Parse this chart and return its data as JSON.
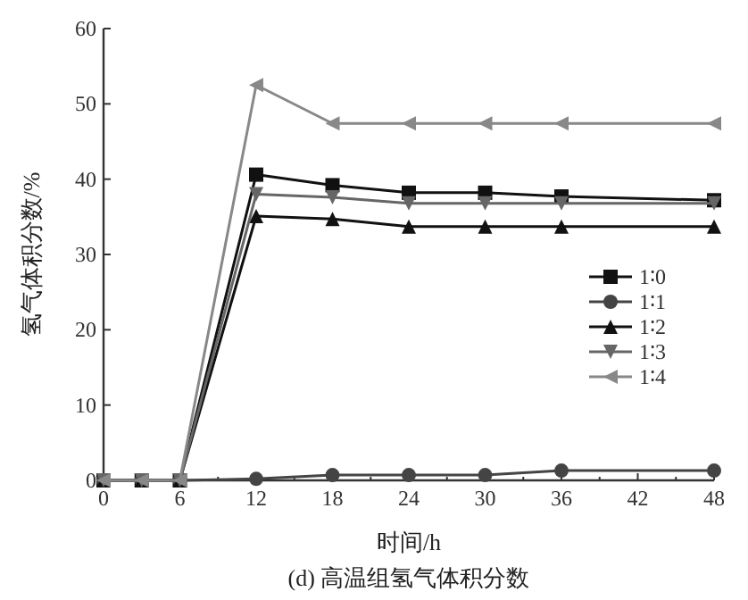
{
  "chart_data": {
    "type": "line",
    "title": "(d) 高温组氢气体积分数",
    "xlabel": "时间/h",
    "ylabel": "氢气体积分数/%",
    "x": [
      0,
      3,
      6,
      12,
      18,
      24,
      30,
      36,
      48
    ],
    "xlim": [
      0,
      48
    ],
    "xticks": [
      0,
      6,
      12,
      18,
      24,
      30,
      36,
      42,
      48
    ],
    "ylim": [
      0,
      60
    ],
    "yticks": [
      0,
      10,
      20,
      30,
      40,
      50,
      60
    ],
    "grid": false,
    "legend": "right",
    "series": [
      {
        "name": "1∶0",
        "color": "#111111",
        "marker": "square",
        "values": [
          0,
          0,
          0,
          40.6,
          39.2,
          38.2,
          38.2,
          37.7,
          37.2
        ]
      },
      {
        "name": "1∶1",
        "color": "#444444",
        "marker": "circle",
        "values": [
          0,
          0,
          0,
          0.2,
          0.7,
          0.7,
          0.7,
          1.3,
          1.3
        ]
      },
      {
        "name": "1∶2",
        "color": "#111111",
        "marker": "triangle",
        "values": [
          0,
          0,
          0,
          35.1,
          34.7,
          33.7,
          33.7,
          33.7,
          33.7
        ]
      },
      {
        "name": "1∶3",
        "color": "#666666",
        "marker": "triangle-down",
        "values": [
          0,
          0,
          0,
          38.0,
          37.6,
          36.8,
          36.8,
          36.8,
          36.8
        ]
      },
      {
        "name": "1∶4",
        "color": "#888888",
        "marker": "triangle-left",
        "values": [
          0,
          0,
          0,
          52.5,
          47.4,
          47.4,
          47.4,
          47.4,
          47.4
        ]
      }
    ]
  }
}
